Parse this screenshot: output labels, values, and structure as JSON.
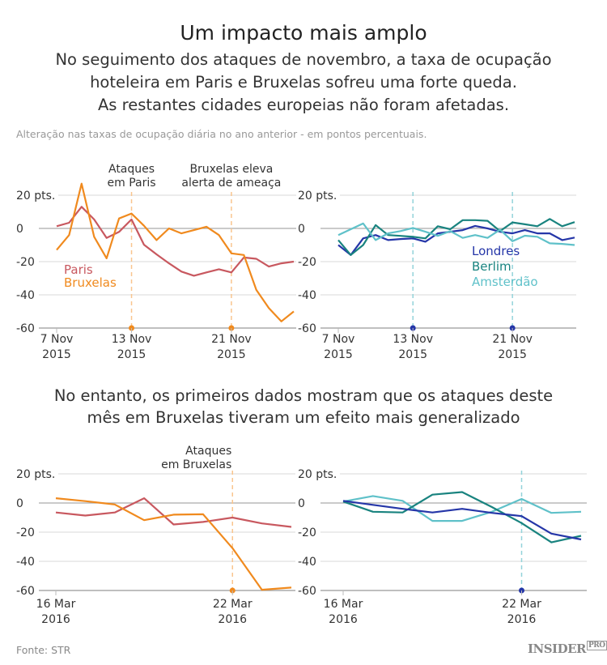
{
  "header": {
    "title": "Um impacto mais amplo",
    "subtitle": [
      "No seguimento dos ataques de novembro, a taxa de ocupação",
      "hoteleira em Paris e Bruxelas sofreu uma forte queda.",
      "As restantes cidades europeias não foram afetadas."
    ],
    "note": "Alteração nas taxas de ocupação diária no ano anterior - em pontos percentuais."
  },
  "middle_heading": [
    "No entanto, os primeiros dados mostram que os ataques deste",
    "mês em Bruxelas tiveram um efeito mais generalizado"
  ],
  "footer": {
    "source": "Fonte: STR",
    "logo": "INSIDER",
    "logo_suffix": "PRO"
  },
  "colors": {
    "Paris": "#c8585f",
    "Bruxelas": "#f08a1e",
    "Londres": "#2536a8",
    "Berlim": "#19837f",
    "Amsterdão": "#5fc1c9",
    "vline_orange": "#f9c58e",
    "vline_blue": "#93d3da",
    "grid": "#e6e6e6",
    "zero": "#aaaaaa"
  },
  "chart_data": [
    {
      "type": "line",
      "x": [
        "2015-11-07",
        "2015-11-08",
        "2015-11-09",
        "2015-11-10",
        "2015-11-11",
        "2015-11-12",
        "2015-11-13",
        "2015-11-14",
        "2015-11-15",
        "2015-11-16",
        "2015-11-17",
        "2015-11-18",
        "2015-11-19",
        "2015-11-20",
        "2015-11-21",
        "2015-11-22",
        "2015-11-23",
        "2015-11-24",
        "2015-11-25",
        "2015-11-26"
      ],
      "series": [
        {
          "name": "Paris",
          "values": [
            1.3,
            3.4,
            13,
            5.4,
            -5.7,
            -2.1,
            5.4,
            -9.8,
            -15.6,
            -21,
            -26,
            -28.5,
            -26.5,
            -24.6,
            -26.5,
            -17.5,
            -18.3,
            -23,
            -21,
            -20
          ]
        },
        {
          "name": "Bruxelas",
          "values": [
            -13,
            -4,
            27,
            -5,
            -18,
            6,
            9,
            1.6,
            -7,
            0,
            -3,
            -1,
            1,
            -4,
            -15,
            -16,
            -37,
            -48,
            -56,
            -50
          ]
        }
      ],
      "ylim": [
        -60,
        20
      ],
      "yticks": [
        {
          "value": 20,
          "label": "20 pts."
        },
        {
          "value": 0,
          "label": "0"
        },
        {
          "value": -20,
          "label": "-20"
        },
        {
          "value": -40,
          "label": "-40"
        },
        {
          "value": -60,
          "label": "-60"
        }
      ],
      "xticks": [
        {
          "x": "2015-11-07",
          "label": [
            "7 Nov",
            "2015"
          ]
        },
        {
          "x": "2015-11-13",
          "label": [
            "13 Nov",
            "2015"
          ]
        },
        {
          "x": "2015-11-21",
          "label": [
            "21 Nov",
            "2015"
          ]
        }
      ],
      "annotations": [
        {
          "x": "2015-11-13",
          "label": [
            "Ataques",
            "em Paris"
          ]
        },
        {
          "x": "2015-11-21",
          "label": [
            "Bruxelas eleva",
            "alerta de ameaça"
          ]
        }
      ],
      "grid": true
    },
    {
      "type": "line",
      "x": [
        "2015-11-07",
        "2015-11-08",
        "2015-11-09",
        "2015-11-10",
        "2015-11-11",
        "2015-11-12",
        "2015-11-13",
        "2015-11-14",
        "2015-11-15",
        "2015-11-16",
        "2015-11-17",
        "2015-11-18",
        "2015-11-19",
        "2015-11-20",
        "2015-11-21",
        "2015-11-22",
        "2015-11-23",
        "2015-11-24",
        "2015-11-25",
        "2015-11-26"
      ],
      "series": [
        {
          "name": "Londres",
          "values": [
            -10,
            -16,
            -6,
            -4,
            -7,
            -6.4,
            -6,
            -8,
            -3,
            -2,
            -1,
            1.5,
            0,
            -2,
            -3,
            -1,
            -3,
            -3,
            -7,
            -5.5
          ]
        },
        {
          "name": "Berlim",
          "values": [
            -7,
            -16,
            -10,
            2,
            -4,
            -4.5,
            -5,
            -6,
            1.3,
            -0.5,
            5,
            5,
            4.6,
            -1.6,
            3.6,
            2.5,
            1.3,
            5.7,
            1.3,
            3.8
          ]
        },
        {
          "name": "Amsterdão",
          "values": [
            -4,
            -0.5,
            3,
            -7,
            -3,
            -1.6,
            0.3,
            -2,
            -4.5,
            -1.6,
            -5.7,
            -4,
            -5.7,
            -0.8,
            -7.7,
            -4.4,
            -5,
            -9,
            -9.3,
            -10
          ]
        }
      ],
      "ylim": [
        -60,
        20
      ],
      "yticks": [
        {
          "value": 20,
          "label": "20 pts."
        },
        {
          "value": 0,
          "label": "0"
        },
        {
          "value": -20,
          "label": "-20"
        },
        {
          "value": -40,
          "label": "-40"
        },
        {
          "value": -60,
          "label": "-60"
        }
      ],
      "xticks": [
        {
          "x": "2015-11-07",
          "label": [
            "7 Nov",
            "2015"
          ]
        },
        {
          "x": "2015-11-13",
          "label": [
            "13 Nov",
            "2015"
          ]
        },
        {
          "x": "2015-11-21",
          "label": [
            "21 Nov",
            "2015"
          ]
        }
      ],
      "annotations": [
        {
          "x": "2015-11-13",
          "label": []
        },
        {
          "x": "2015-11-21",
          "label": []
        }
      ],
      "grid": true
    },
    {
      "type": "line",
      "x": [
        "2016-03-16",
        "2016-03-17",
        "2016-03-18",
        "2016-03-19",
        "2016-03-20",
        "2016-03-21",
        "2016-03-22",
        "2016-03-23",
        "2016-03-24"
      ],
      "series": [
        {
          "name": "Paris",
          "values": [
            -6.5,
            -8.6,
            -6.5,
            3.3,
            -14.7,
            -13,
            -10,
            -14,
            -16.4
          ]
        },
        {
          "name": "Bruxelas",
          "values": [
            3.3,
            1.3,
            -1,
            -11.8,
            -8,
            -7.7,
            -31,
            -59.5,
            -58
          ]
        }
      ],
      "ylim": [
        -60,
        20
      ],
      "yticks": [
        {
          "value": 20,
          "label": "20 pts."
        },
        {
          "value": 0,
          "label": "0"
        },
        {
          "value": -20,
          "label": "-20"
        },
        {
          "value": -40,
          "label": "-40"
        },
        {
          "value": -60,
          "label": "-60"
        }
      ],
      "xticks": [
        {
          "x": "2016-03-16",
          "label": [
            "16 Mar",
            "2016"
          ]
        },
        {
          "x": "2016-03-22",
          "label": [
            "22 Mar",
            "2016"
          ]
        }
      ],
      "annotations": [
        {
          "x": "2016-03-22",
          "label": [
            "Ataques",
            "em Bruxelas"
          ]
        }
      ],
      "grid": true
    },
    {
      "type": "line",
      "x": [
        "2016-03-16",
        "2016-03-17",
        "2016-03-18",
        "2016-03-19",
        "2016-03-20",
        "2016-03-21",
        "2016-03-22",
        "2016-03-23",
        "2016-03-24"
      ],
      "series": [
        {
          "name": "Amsterdão",
          "values": [
            1,
            4.8,
            1.5,
            -12.3,
            -12.3,
            -6,
            2.8,
            -6.8,
            -6
          ]
        },
        {
          "name": "Berlim",
          "values": [
            1,
            -6,
            -6.5,
            5.7,
            7.5,
            -2.8,
            -13.8,
            -27,
            -22.5
          ]
        },
        {
          "name": "Londres",
          "values": [
            1.5,
            -1.3,
            -4,
            -6.5,
            -4,
            -6.8,
            -9,
            -21,
            -25
          ]
        }
      ],
      "ylim": [
        -60,
        20
      ],
      "yticks": [
        {
          "value": 20,
          "label": "20 pts."
        },
        {
          "value": 0,
          "label": "0"
        },
        {
          "value": -20,
          "label": "-20"
        },
        {
          "value": -40,
          "label": "-40"
        },
        {
          "value": -60,
          "label": "-60"
        }
      ],
      "xticks": [
        {
          "x": "2016-03-16",
          "label": [
            "16 Mar",
            "2016"
          ]
        },
        {
          "x": "2016-03-22",
          "label": [
            "22 Mar",
            "2016"
          ]
        }
      ],
      "annotations": [
        {
          "x": "2016-03-22",
          "label": []
        }
      ],
      "grid": true
    }
  ],
  "legends": {
    "top_left": [
      "Paris",
      "Bruxelas"
    ],
    "top_right": [
      "Londres",
      "Berlim",
      "Amsterdão"
    ]
  }
}
